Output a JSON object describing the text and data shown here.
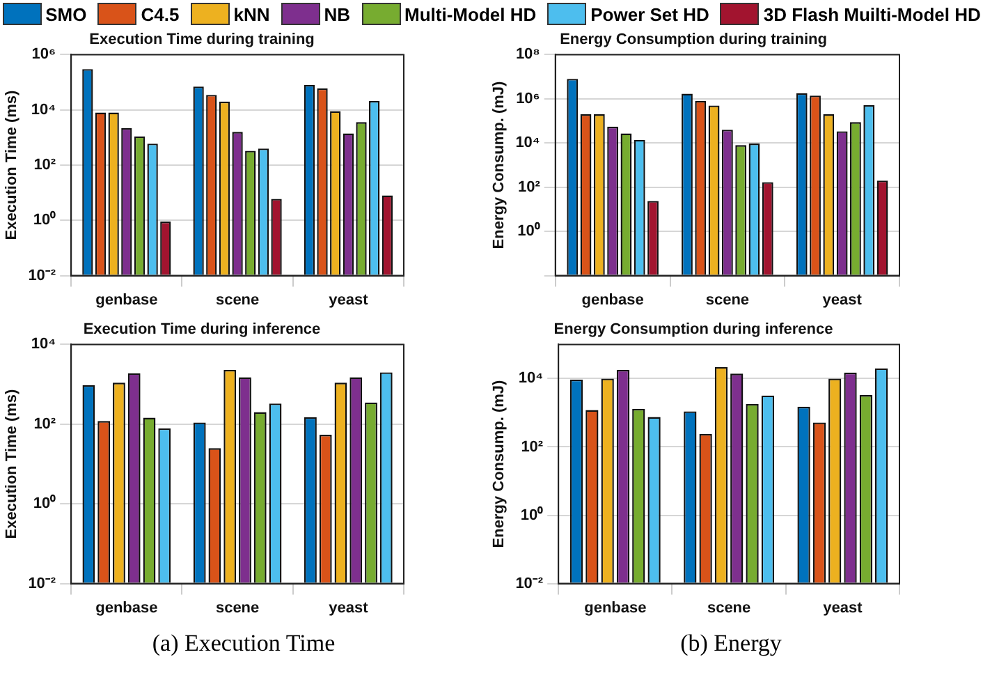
{
  "chart_data": [
    {
      "type": "bar",
      "title": "Execution Time during training",
      "ylabel": "Execution Time (ms)",
      "categories": [
        "genbase",
        "scene",
        "yeast"
      ],
      "log": true,
      "ylim": [
        0.01,
        1000000
      ],
      "yticks": [
        {
          "value": 0.01,
          "label": "10⁻²"
        },
        {
          "value": 1,
          "label": "10⁰"
        },
        {
          "value": 100,
          "label": "10²"
        },
        {
          "value": 10000,
          "label": "10⁴"
        },
        {
          "value": 1000000,
          "label": "10⁶"
        }
      ],
      "grid": true,
      "legend": "top",
      "series": [
        {
          "name": "SMO",
          "color": "#0072bd",
          "values": [
            300000,
            70000,
            80000
          ]
        },
        {
          "name": "C4.5",
          "color": "#d95319",
          "values": [
            8000,
            35000,
            60000
          ]
        },
        {
          "name": "kNN",
          "color": "#edb120",
          "values": [
            8000,
            20000,
            9000
          ]
        },
        {
          "name": "NB",
          "color": "#7e2f8e",
          "values": [
            2200,
            1600,
            1400
          ]
        },
        {
          "name": "Multi-Model HD",
          "color": "#77ac30",
          "values": [
            1100,
            330,
            3600
          ]
        },
        {
          "name": "Power Set HD",
          "color": "#4dbeee",
          "values": [
            600,
            400,
            21000
          ]
        },
        {
          "name": "3D Flash Muilti-Model HD",
          "color": "#a2142f",
          "values": [
            0.9,
            6,
            8
          ]
        }
      ]
    },
    {
      "type": "bar",
      "title": "Energy Consumption during training",
      "ylabel": "Energy Consump. (mJ)",
      "categories": [
        "genbase",
        "scene",
        "yeast"
      ],
      "log": true,
      "ylim": [
        0.01,
        100000000
      ],
      "yticks": [
        {
          "value": 0.01,
          "label": null
        },
        {
          "value": 1,
          "label": "10⁰"
        },
        {
          "value": 100,
          "label": "10²"
        },
        {
          "value": 10000,
          "label": "10⁴"
        },
        {
          "value": 1000000,
          "label": "10⁶"
        },
        {
          "value": 100000000,
          "label": "10⁸"
        }
      ],
      "grid": true,
      "series": [
        {
          "color": "#0072bd",
          "values": [
            8000000,
            1700000,
            1800000
          ]
        },
        {
          "color": "#d95319",
          "values": [
            200000,
            800000,
            1400000
          ]
        },
        {
          "color": "#edb120",
          "values": [
            200000,
            500000,
            200000
          ]
        },
        {
          "color": "#7e2f8e",
          "values": [
            55000,
            40000,
            34000
          ]
        },
        {
          "color": "#77ac30",
          "values": [
            27000,
            8000,
            88000
          ]
        },
        {
          "color": "#4dbeee",
          "values": [
            14000,
            9500,
            520000
          ]
        },
        {
          "color": "#a2142f",
          "values": [
            24,
            170,
            200
          ]
        }
      ]
    },
    {
      "type": "bar",
      "title": "Execution Time during inference",
      "ylabel": "Execution Time (ms)",
      "categories": [
        "genbase",
        "scene",
        "yeast"
      ],
      "log": true,
      "ylim": [
        0.01,
        10000
      ],
      "yticks": [
        {
          "value": 0.01,
          "label": "10⁻²"
        },
        {
          "value": 1,
          "label": "10⁰"
        },
        {
          "value": 100,
          "label": "10²"
        },
        {
          "value": 10000,
          "label": "10⁴"
        }
      ],
      "grid": true,
      "annotations": [
        "(a)  Execution Time"
      ],
      "series": [
        {
          "color": "#0072bd",
          "values": [
            950,
            110,
            150
          ]
        },
        {
          "color": "#d95319",
          "values": [
            120,
            25,
            54
          ]
        },
        {
          "color": "#edb120",
          "values": [
            1100,
            2300,
            1100
          ]
        },
        {
          "color": "#7e2f8e",
          "values": [
            1900,
            1500,
            1500
          ]
        },
        {
          "color": "#77ac30",
          "values": [
            145,
            200,
            350
          ]
        },
        {
          "color": "#4dbeee",
          "values": [
            78,
            330,
            2000
          ]
        }
      ]
    },
    {
      "type": "bar",
      "title": "Energy Consumption during inference",
      "ylabel": "Energy Consump. (mJ)",
      "categories": [
        "genbase",
        "scene",
        "yeast"
      ],
      "log": true,
      "ylim": [
        0.01,
        100000
      ],
      "yticks": [
        {
          "value": 0.01,
          "label": "10⁻²"
        },
        {
          "value": 1,
          "label": "10⁰"
        },
        {
          "value": 100,
          "label": "10²"
        },
        {
          "value": 10000,
          "label": "10⁴"
        }
      ],
      "grid": true,
      "annotations": [
        "(b)  Energy"
      ],
      "series": [
        {
          "color": "#0072bd",
          "values": [
            9400,
            1100,
            1500
          ]
        },
        {
          "color": "#d95319",
          "values": [
            1200,
            240,
            520
          ]
        },
        {
          "color": "#edb120",
          "values": [
            10000,
            22000,
            10000
          ]
        },
        {
          "color": "#7e2f8e",
          "values": [
            18000,
            14000,
            15000
          ]
        },
        {
          "color": "#77ac30",
          "values": [
            1300,
            1800,
            3300
          ]
        },
        {
          "color": "#4dbeee",
          "values": [
            750,
            3200,
            20000
          ]
        }
      ]
    }
  ]
}
